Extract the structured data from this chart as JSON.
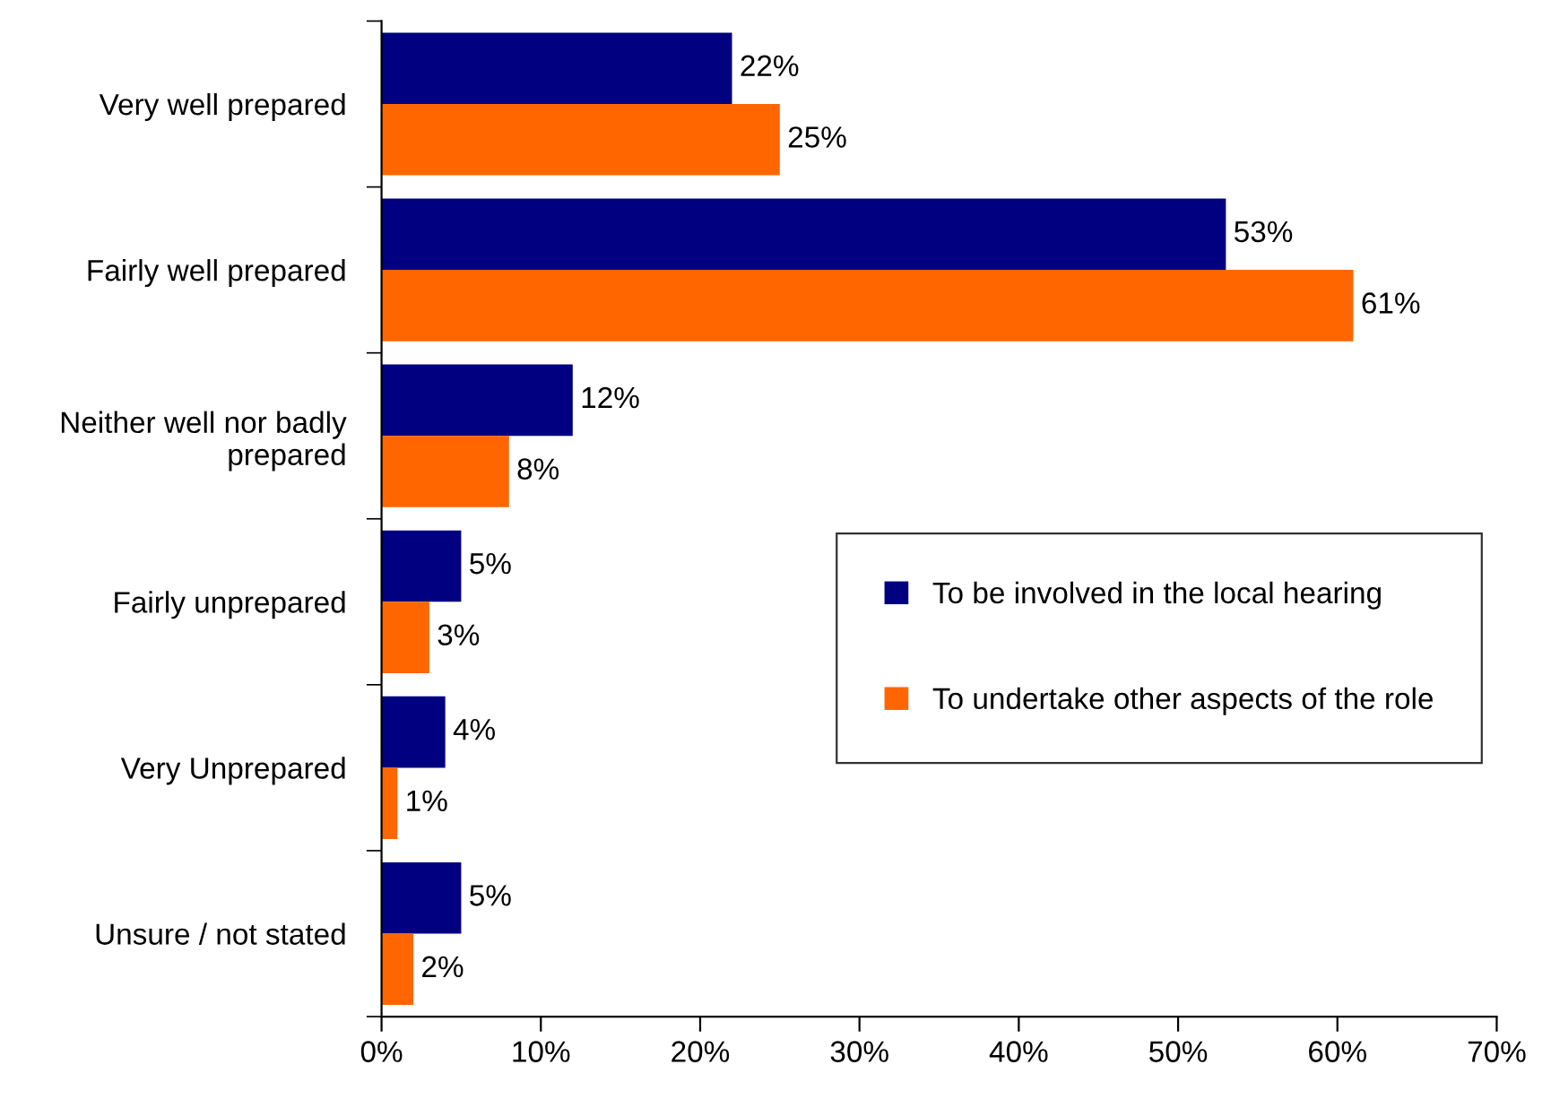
{
  "chart_data": {
    "type": "bar",
    "orientation": "horizontal",
    "categories": [
      "Very well prepared",
      "Fairly well prepared",
      "Neither well nor badly prepared",
      "Fairly unprepared",
      "Very Unprepared",
      "Unsure / not stated"
    ],
    "series": [
      {
        "name": "To be involved in the local hearing",
        "color": "#000080",
        "values": [
          22,
          53,
          12,
          5,
          4,
          5
        ],
        "value_labels": [
          "22%",
          "53%",
          "12%",
          "5%",
          "4%",
          "5%"
        ]
      },
      {
        "name": "To undertake other aspects of the role",
        "color": "#ff6600",
        "values": [
          25,
          61,
          8,
          3,
          1,
          2
        ],
        "value_labels": [
          "25%",
          "61%",
          "8%",
          "3%",
          "1%",
          "2%"
        ]
      }
    ],
    "xlim": [
      0,
      70
    ],
    "xticks": [
      {
        "value": 0,
        "label": "0%"
      },
      {
        "value": 10,
        "label": "10%"
      },
      {
        "value": 20,
        "label": "20%"
      },
      {
        "value": 30,
        "label": "30%"
      },
      {
        "value": 40,
        "label": "40%"
      },
      {
        "value": 50,
        "label": "50%"
      },
      {
        "value": 60,
        "label": "60%"
      },
      {
        "value": 70,
        "label": "70%"
      }
    ],
    "grid": false,
    "legend": "right"
  }
}
